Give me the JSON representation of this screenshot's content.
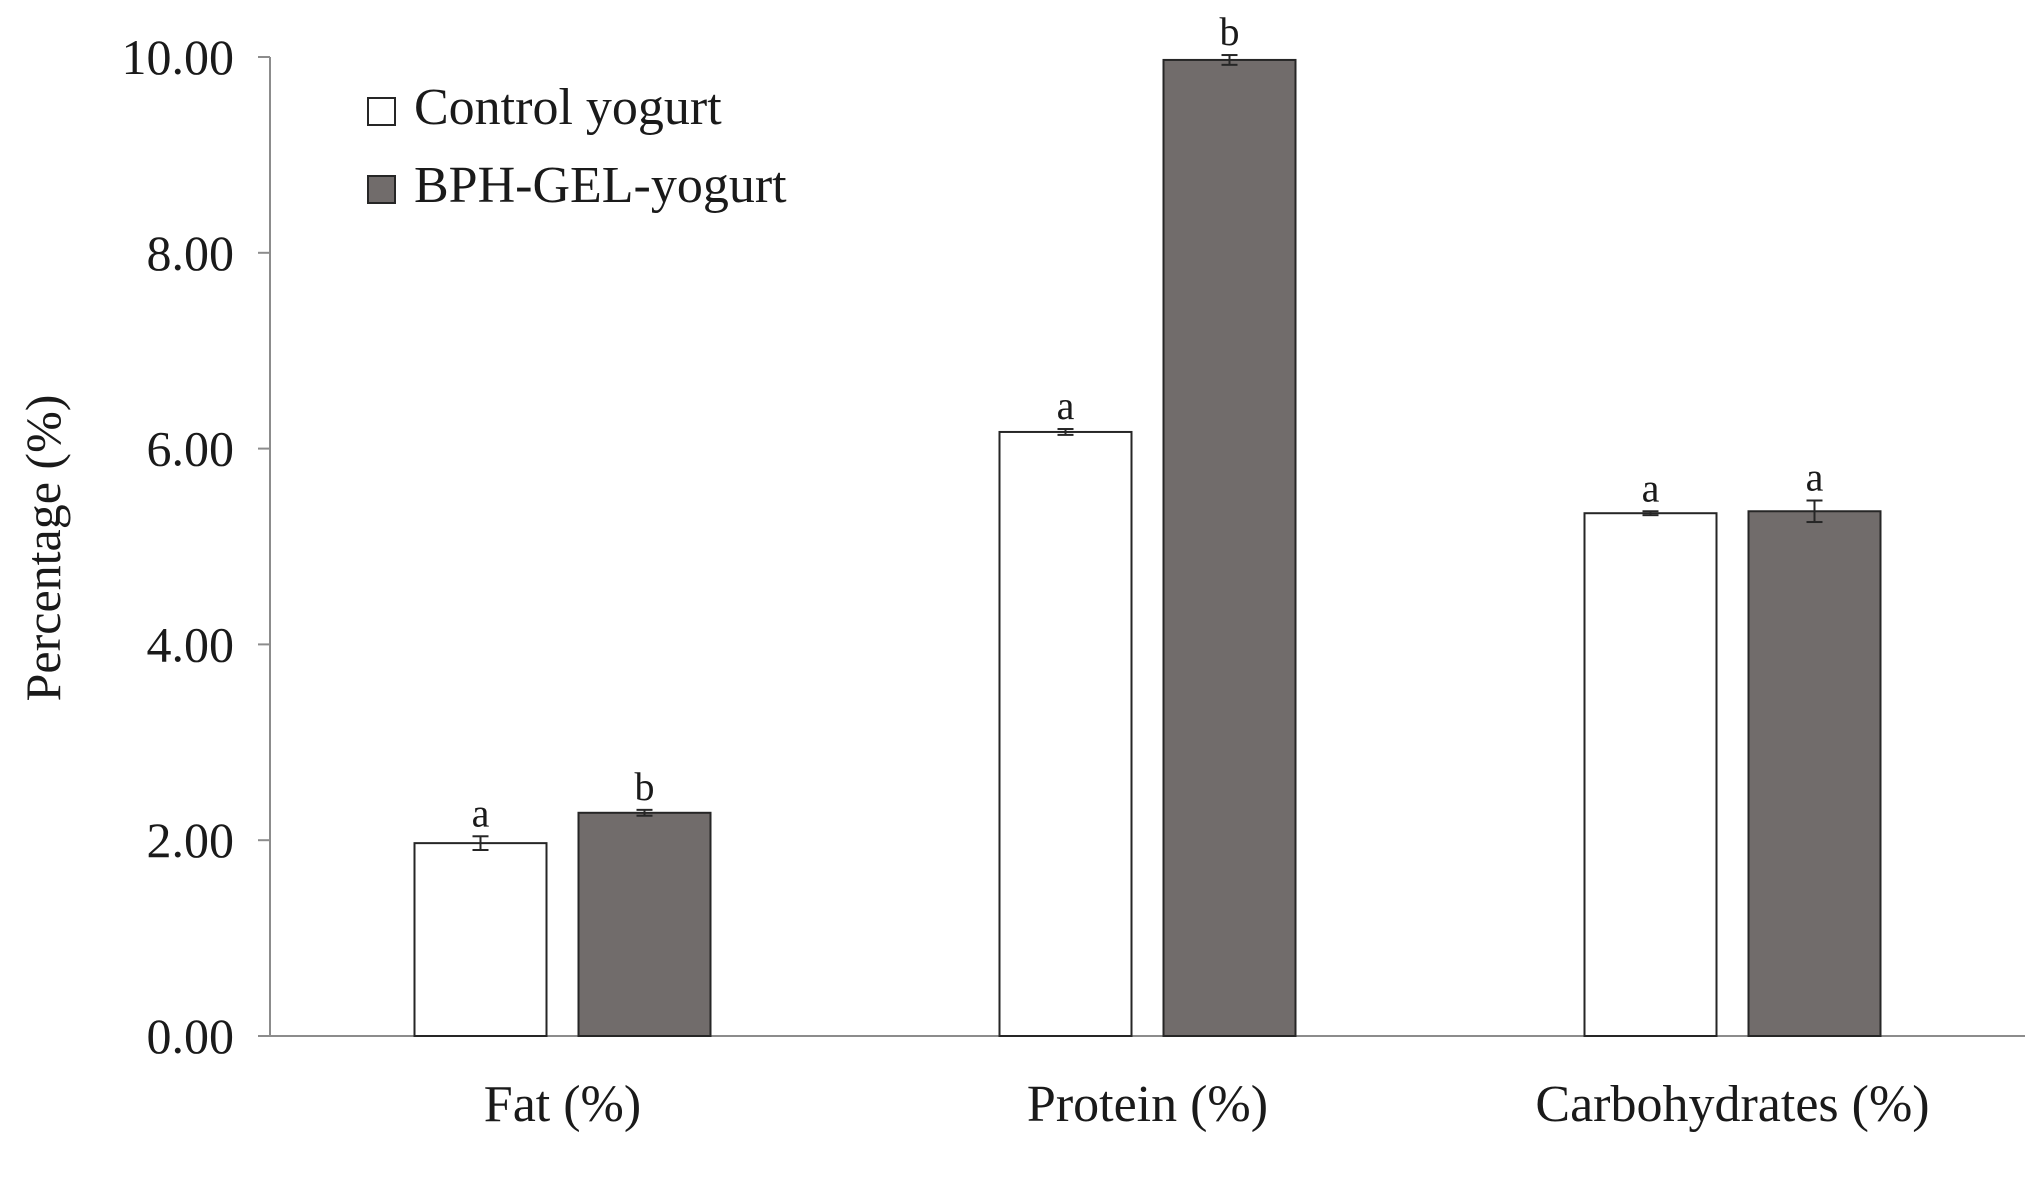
{
  "chart_data": {
    "type": "bar",
    "title": "",
    "xlabel": "",
    "ylabel": "Percentage (%)",
    "ylim": [
      0,
      10
    ],
    "yticks": [
      "0.00",
      "2.00",
      "4.00",
      "6.00",
      "8.00",
      "10.00"
    ],
    "grid": false,
    "legend_position": "top-left",
    "categories": [
      "Fat (%)",
      "Protein (%)",
      "Carbohydrates (%)"
    ],
    "series": [
      {
        "name": "Control yogurt",
        "color": "#ffffff",
        "values": [
          1.97,
          6.17,
          5.34
        ],
        "errors": [
          0.07,
          0.03,
          0.02
        ],
        "significance": [
          "a",
          "a",
          "a"
        ]
      },
      {
        "name": "BPH-GEL-yogurt",
        "color": "#716c6b",
        "values": [
          2.28,
          9.97,
          5.36
        ],
        "errors": [
          0.03,
          0.05,
          0.11
        ],
        "significance": [
          "b",
          "b",
          "a"
        ]
      }
    ]
  }
}
